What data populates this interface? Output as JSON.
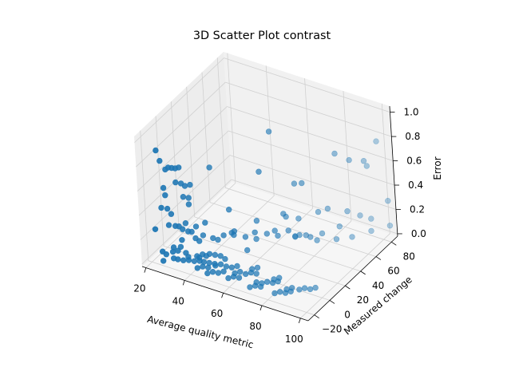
{
  "chart_data": {
    "type": "scatter",
    "projection": "3d",
    "title": "3D Scatter Plot contrast",
    "xlabel": "Average quality metric",
    "ylabel": "Measured change",
    "zlabel": "Error",
    "xlim": [
      18,
      104
    ],
    "ylim": [
      -28,
      88
    ],
    "zlim": [
      -0.02,
      1.05
    ],
    "xticks": [
      20,
      40,
      60,
      80,
      100
    ],
    "yticks": [
      -20,
      0,
      20,
      40,
      60,
      80
    ],
    "zticks": [
      0.0,
      0.2,
      0.4,
      0.6,
      0.8,
      1.0
    ],
    "xtick_labels": [
      "20",
      "40",
      "60",
      "80",
      "100"
    ],
    "ytick_labels": [
      "−20",
      "0",
      "20",
      "40",
      "60",
      "80"
    ],
    "ztick_labels": [
      "0.0",
      "0.2",
      "0.4",
      "0.6",
      "0.8",
      "1.0"
    ],
    "grid": true,
    "marker_color": "#1f77b4",
    "points": [
      [
        22,
        -12,
        0.86
      ],
      [
        22,
        -8,
        0.75
      ],
      [
        23,
        -4,
        0.66
      ],
      [
        24,
        -10,
        0.55
      ],
      [
        23,
        -6,
        0.46
      ],
      [
        24,
        -14,
        0.41
      ],
      [
        22,
        -2,
        0.32
      ],
      [
        23,
        0,
        0.27
      ],
      [
        21,
        -16,
        0.23
      ],
      [
        24,
        -6,
        0.22
      ],
      [
        25,
        -18,
        0.08
      ],
      [
        26,
        -16,
        0.05
      ],
      [
        27,
        -10,
        0.04
      ],
      [
        28,
        -6,
        0.03
      ],
      [
        25,
        -4,
        0.03
      ],
      [
        27,
        0,
        0.02
      ],
      [
        29,
        -14,
        0.02
      ],
      [
        26,
        -20,
        0.02
      ],
      [
        28,
        -12,
        0.75
      ],
      [
        29,
        -10,
        0.74
      ],
      [
        30,
        -8,
        0.73
      ],
      [
        31,
        -6,
        0.73
      ],
      [
        28,
        -4,
        0.58
      ],
      [
        30,
        -2,
        0.57
      ],
      [
        32,
        -2,
        0.56
      ],
      [
        29,
        2,
        0.43
      ],
      [
        31,
        4,
        0.42
      ],
      [
        33,
        2,
        0.55
      ],
      [
        30,
        -12,
        0.28
      ],
      [
        31,
        -10,
        0.27
      ],
      [
        32,
        -8,
        0.24
      ],
      [
        34,
        -6,
        0.22
      ],
      [
        35,
        -4,
        0.21
      ],
      [
        33,
        -12,
        0.18
      ],
      [
        36,
        -2,
        0.15
      ],
      [
        37,
        0,
        0.12
      ],
      [
        34,
        4,
        0.2
      ],
      [
        38,
        6,
        0.24
      ],
      [
        32,
        -16,
        0.04
      ],
      [
        34,
        -14,
        0.03
      ],
      [
        36,
        -12,
        0.03
      ],
      [
        38,
        -10,
        0.02
      ],
      [
        40,
        -8,
        0.02
      ],
      [
        35,
        -10,
        0.04
      ],
      [
        39,
        -6,
        0.03
      ],
      [
        37,
        -4,
        0.02
      ],
      [
        41,
        -2,
        0.03
      ],
      [
        33,
        -8,
        0.05
      ],
      [
        42,
        -16,
        0.02
      ],
      [
        44,
        -14,
        0.03
      ],
      [
        46,
        -12,
        0.02
      ],
      [
        43,
        -10,
        0.04
      ],
      [
        45,
        -8,
        0.03
      ],
      [
        47,
        -6,
        0.02
      ],
      [
        40,
        -4,
        0.05
      ],
      [
        42,
        0,
        0.04
      ],
      [
        44,
        2,
        0.03
      ],
      [
        46,
        4,
        0.02
      ],
      [
        48,
        -18,
        0.02
      ],
      [
        50,
        -16,
        0.03
      ],
      [
        52,
        -14,
        0.02
      ],
      [
        54,
        -12,
        0.03
      ],
      [
        49,
        -10,
        0.04
      ],
      [
        51,
        -8,
        0.05
      ],
      [
        53,
        -6,
        0.03
      ],
      [
        55,
        -4,
        0.02
      ],
      [
        57,
        -2,
        0.03
      ],
      [
        50,
        0,
        0.04
      ],
      [
        58,
        -16,
        0.02
      ],
      [
        60,
        -14,
        0.03
      ],
      [
        62,
        -12,
        0.02
      ],
      [
        59,
        -10,
        0.03
      ],
      [
        61,
        -8,
        0.04
      ],
      [
        63,
        -6,
        0.02
      ],
      [
        65,
        -4,
        0.03
      ],
      [
        67,
        -2,
        0.02
      ],
      [
        64,
        0,
        0.03
      ],
      [
        66,
        2,
        0.04
      ],
      [
        70,
        -18,
        0.02
      ],
      [
        72,
        -16,
        0.03
      ],
      [
        74,
        -14,
        0.02
      ],
      [
        71,
        -12,
        0.03
      ],
      [
        73,
        -10,
        0.02
      ],
      [
        75,
        -8,
        0.03
      ],
      [
        77,
        -6,
        0.02
      ],
      [
        79,
        -4,
        0.03
      ],
      [
        76,
        -2,
        0.02
      ],
      [
        78,
        0,
        0.03
      ],
      [
        82,
        -16,
        0.02
      ],
      [
        84,
        -14,
        0.03
      ],
      [
        86,
        -12,
        0.02
      ],
      [
        88,
        -10,
        0.03
      ],
      [
        85,
        -8,
        0.02
      ],
      [
        87,
        -6,
        0.03
      ],
      [
        90,
        -4,
        0.02
      ],
      [
        92,
        -2,
        0.03
      ],
      [
        94,
        0,
        0.02
      ],
      [
        96,
        2,
        0.03
      ],
      [
        40,
        10,
        0.1
      ],
      [
        44,
        14,
        0.12
      ],
      [
        48,
        18,
        0.15
      ],
      [
        52,
        22,
        0.1
      ],
      [
        56,
        26,
        0.08
      ],
      [
        60,
        30,
        0.12
      ],
      [
        64,
        34,
        0.1
      ],
      [
        68,
        38,
        0.14
      ],
      [
        72,
        42,
        0.1
      ],
      [
        76,
        46,
        0.08
      ],
      [
        45,
        20,
        0.3
      ],
      [
        55,
        30,
        0.2
      ],
      [
        65,
        40,
        0.25
      ],
      [
        58,
        20,
        0.18
      ],
      [
        66,
        26,
        0.2
      ],
      [
        74,
        32,
        0.16
      ],
      [
        82,
        40,
        0.12
      ],
      [
        88,
        50,
        0.1
      ],
      [
        92,
        60,
        0.08
      ],
      [
        98,
        70,
        0.1
      ],
      [
        60,
        40,
        0.9
      ],
      [
        62,
        20,
        0.7
      ],
      [
        80,
        30,
        0.64
      ],
      [
        70,
        44,
        0.5
      ],
      [
        88,
        54,
        0.78
      ],
      [
        92,
        62,
        0.7
      ],
      [
        98,
        66,
        0.7
      ],
      [
        100,
        78,
        0.8
      ],
      [
        96,
        74,
        0.6
      ],
      [
        100,
        88,
        0.25
      ],
      [
        36,
        20,
        0.6
      ],
      [
        30,
        6,
        0.35
      ],
      [
        26,
        10,
        0.15
      ],
      [
        34,
        12,
        0.08
      ],
      [
        40,
        16,
        0.05
      ],
      [
        52,
        8,
        0.2
      ],
      [
        56,
        14,
        0.06
      ],
      [
        44,
        24,
        0.08
      ],
      [
        80,
        60,
        0.25
      ],
      [
        86,
        70,
        0.2
      ],
      [
        90,
        76,
        0.15
      ],
      [
        94,
        80,
        0.12
      ],
      [
        102,
        84,
        0.08
      ],
      [
        84,
        64,
        0.1
      ],
      [
        78,
        56,
        0.06
      ],
      [
        72,
        50,
        0.05
      ],
      [
        68,
        46,
        0.04
      ],
      [
        62,
        50,
        0.15
      ],
      [
        66,
        56,
        0.12
      ],
      [
        74,
        62,
        0.18
      ]
    ]
  }
}
